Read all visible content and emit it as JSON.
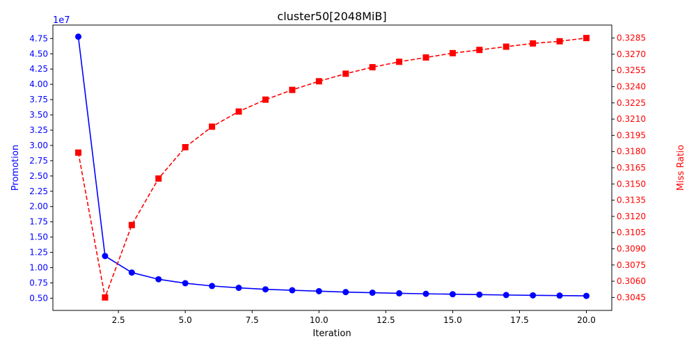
{
  "chart_data": {
    "type": "line",
    "title": "cluster50[2048MiB]",
    "xlabel": "Iteration",
    "x": [
      1,
      2,
      3,
      4,
      5,
      6,
      7,
      8,
      9,
      10,
      11,
      12,
      13,
      14,
      15,
      16,
      17,
      18,
      19,
      20
    ],
    "xlim": [
      0.05,
      20.95
    ],
    "x_ticks": [
      2.5,
      5.0,
      7.5,
      10.0,
      12.5,
      15.0,
      17.5,
      20.0
    ],
    "x_tick_labels": [
      "2.5",
      "5.0",
      "7.5",
      "10.0",
      "12.5",
      "15.0",
      "17.5",
      "20.0"
    ],
    "y_left": {
      "label": "Promotion",
      "color": "#0000ff",
      "multiplier_label": "1e7",
      "ylim": [
        0.3,
        4.97
      ],
      "ticks": [
        0.5,
        0.75,
        1.0,
        1.25,
        1.5,
        1.75,
        2.0,
        2.25,
        2.5,
        2.75,
        3.0,
        3.25,
        3.5,
        3.75,
        4.0,
        4.25,
        4.5,
        4.75
      ],
      "tick_labels": [
        "0.50",
        "0.75",
        "1.00",
        "1.25",
        "1.50",
        "1.75",
        "2.00",
        "2.25",
        "2.50",
        "2.75",
        "3.00",
        "3.25",
        "3.50",
        "3.75",
        "4.00",
        "4.25",
        "4.50",
        "4.75"
      ]
    },
    "y_right": {
      "label": "Miss Ratio",
      "color": "#ff0000",
      "ylim": [
        0.3033,
        0.3297
      ],
      "ticks": [
        0.3045,
        0.306,
        0.3075,
        0.309,
        0.3105,
        0.312,
        0.3135,
        0.315,
        0.3165,
        0.318,
        0.3195,
        0.321,
        0.3225,
        0.324,
        0.3255,
        0.327,
        0.3285
      ],
      "tick_labels": [
        "0.3045",
        "0.3060",
        "0.3075",
        "0.3090",
        "0.3105",
        "0.3120",
        "0.3135",
        "0.3150",
        "0.3165",
        "0.3180",
        "0.3195",
        "0.3210",
        "0.3225",
        "0.3240",
        "0.3255",
        "0.3270",
        "0.3285"
      ]
    },
    "series": [
      {
        "axis": "left",
        "color": "#0000ff",
        "marker": "circle",
        "linestyle": "solid",
        "values": [
          4.78,
          1.19,
          0.92,
          0.81,
          0.745,
          0.7,
          0.67,
          0.645,
          0.63,
          0.615,
          0.6,
          0.59,
          0.58,
          0.572,
          0.565,
          0.558,
          0.552,
          0.547,
          0.543,
          0.538
        ]
      },
      {
        "axis": "right",
        "color": "#ff0000",
        "marker": "square",
        "linestyle": "dashed",
        "values": [
          0.3179,
          0.3045,
          0.3112,
          0.3155,
          0.3184,
          0.3203,
          0.3217,
          0.3228,
          0.3237,
          0.3245,
          0.3252,
          0.3258,
          0.3263,
          0.3267,
          0.3271,
          0.3274,
          0.3277,
          0.328,
          0.3282,
          0.3285
        ]
      }
    ],
    "grid": false
  }
}
